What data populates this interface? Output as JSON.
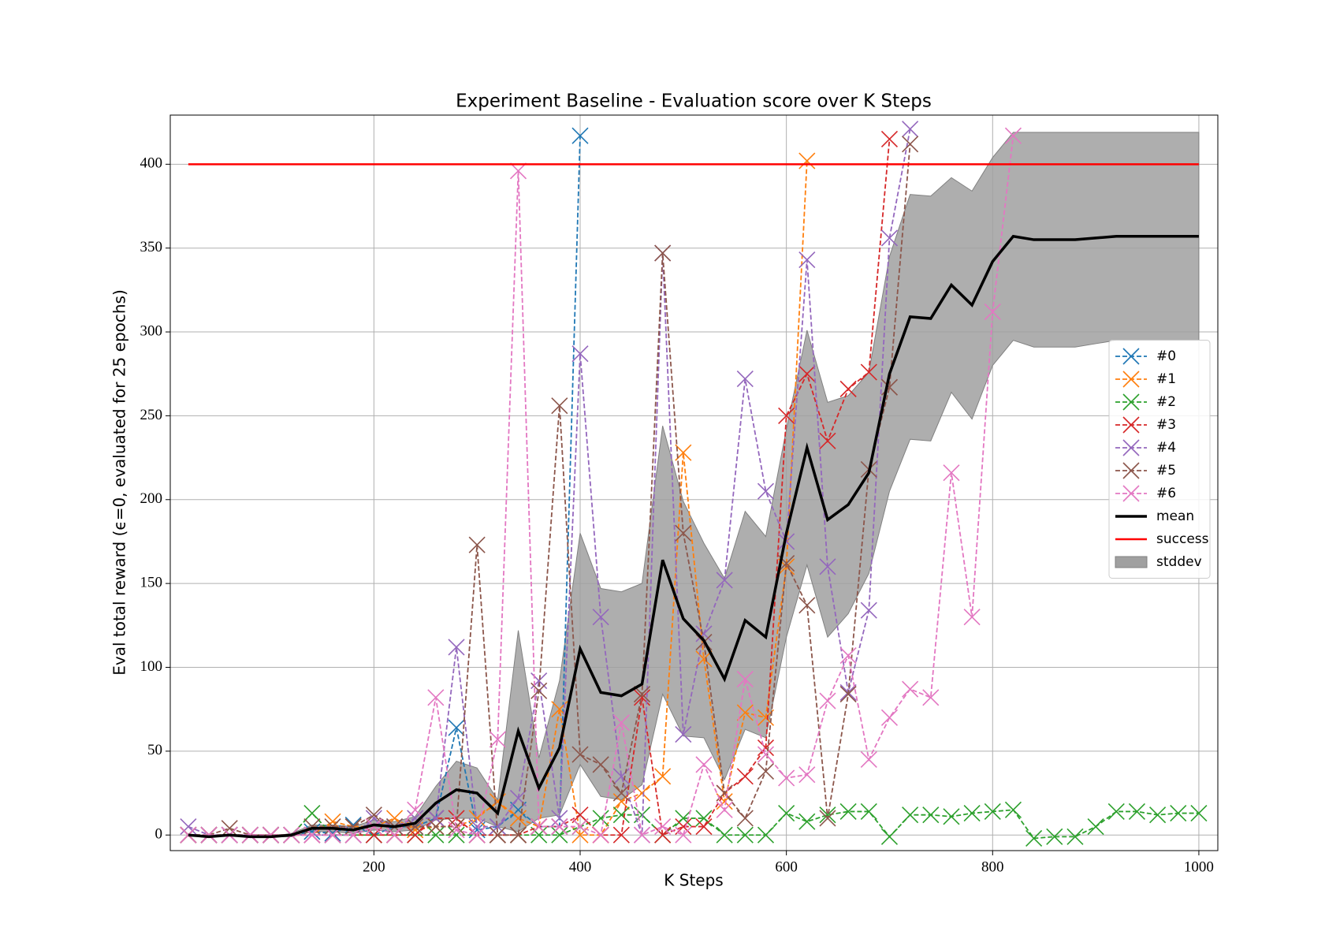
{
  "chart_data": {
    "type": "line",
    "title": "Experiment Baseline - Evaluation score over K Steps",
    "xlabel": "K Steps",
    "ylabel": "Eval total reward (ϵ=0, evaluated for 25 epochs)",
    "x": [
      20,
      40,
      60,
      80,
      100,
      120,
      140,
      160,
      180,
      200,
      220,
      240,
      260,
      280,
      300,
      320,
      340,
      360,
      380,
      400,
      420,
      440,
      460,
      480,
      500,
      520,
      540,
      560,
      580,
      600,
      620,
      640,
      660,
      680,
      700,
      720,
      740,
      760,
      780,
      800,
      820,
      840,
      860,
      880,
      900,
      920,
      940,
      960,
      980,
      1000
    ],
    "xlim": [
      2.5,
      1018.4
    ],
    "ylim": [
      -9.3,
      429.3
    ],
    "xticks": [
      200,
      400,
      600,
      800,
      1000
    ],
    "yticks": [
      0,
      50,
      100,
      150,
      200,
      250,
      300,
      350,
      400
    ],
    "grid": true,
    "legend": "center right",
    "series": [
      {
        "name": "#0",
        "color": "#1f77b4",
        "values": [
          0,
          0,
          0,
          0,
          0,
          0,
          2,
          1,
          6,
          0,
          5,
          5,
          10,
          64,
          3,
          5,
          15,
          5,
          5,
          417,
          null,
          null,
          null,
          null,
          null,
          null,
          null,
          null,
          null,
          null,
          null,
          null,
          null,
          null,
          null,
          null,
          null,
          null,
          null,
          null,
          null,
          null,
          null,
          null,
          null,
          null,
          null,
          null,
          null,
          null
        ]
      },
      {
        "name": "#1",
        "color": "#ff7f0e",
        "values": [
          0,
          0,
          0,
          0,
          0,
          0,
          0,
          8,
          5,
          5,
          10,
          3,
          5,
          5,
          10,
          20,
          10,
          5,
          75,
          0,
          0,
          20,
          25,
          35,
          228,
          105,
          20,
          73,
          70,
          160,
          402,
          null,
          null,
          null,
          null,
          null,
          null,
          null,
          null,
          null,
          null,
          null,
          null,
          null,
          null,
          null,
          null,
          null,
          null,
          null
        ]
      },
      {
        "name": "#2",
        "color": "#2ca02c",
        "values": [
          0,
          0,
          0,
          0,
          0,
          0,
          13,
          0,
          0,
          0,
          0,
          0,
          0,
          0,
          0,
          0,
          0,
          0,
          0,
          5,
          10,
          12,
          12,
          0,
          10,
          10,
          0,
          0,
          0,
          13,
          8,
          12,
          14,
          14,
          -1,
          12,
          12,
          11,
          13,
          14,
          15,
          -2,
          -1,
          -1,
          5,
          14,
          14,
          12,
          13,
          13
        ]
      },
      {
        "name": "#3",
        "color": "#d62728",
        "values": [
          0,
          0,
          0,
          0,
          0,
          0,
          0,
          0,
          0,
          0,
          0,
          0,
          10,
          10,
          0,
          0,
          0,
          5,
          5,
          12,
          0,
          0,
          82,
          0,
          5,
          5,
          25,
          35,
          52,
          250,
          275,
          235,
          266,
          276,
          415,
          null,
          null,
          null,
          null,
          null,
          null,
          null,
          null,
          null,
          null,
          null,
          null,
          null,
          null,
          null
        ]
      },
      {
        "name": "#4",
        "color": "#9467bd",
        "values": [
          5,
          0,
          0,
          0,
          0,
          0,
          0,
          0,
          0,
          10,
          5,
          10,
          10,
          112,
          5,
          5,
          22,
          92,
          10,
          287,
          130,
          35,
          0,
          347,
          60,
          120,
          152,
          272,
          205,
          175,
          343,
          160,
          85,
          134,
          356,
          421,
          null,
          null,
          null,
          null,
          null,
          null,
          null,
          null,
          null,
          null,
          null,
          null,
          null,
          null
        ]
      },
      {
        "name": "#5",
        "color": "#8c564b",
        "values": [
          0,
          0,
          4,
          0,
          0,
          0,
          5,
          5,
          5,
          12,
          5,
          5,
          5,
          5,
          173,
          0,
          0,
          86,
          256,
          48,
          42,
          25,
          84,
          347,
          180,
          115,
          25,
          10,
          38,
          162,
          137,
          10,
          84,
          218,
          267,
          412,
          null,
          null,
          null,
          null,
          null,
          null,
          null,
          null,
          null,
          null,
          null,
          null,
          null,
          null
        ]
      },
      {
        "name": "#6",
        "color": "#e377c2",
        "values": [
          0,
          0,
          0,
          0,
          0,
          0,
          0,
          0,
          0,
          5,
          0,
          15,
          82,
          3,
          0,
          57,
          396,
          5,
          5,
          5,
          0,
          67,
          0,
          5,
          0,
          42,
          15,
          93,
          48,
          34,
          36,
          80,
          107,
          45,
          70,
          87,
          82,
          216,
          130,
          312,
          417,
          null,
          null,
          null,
          null,
          null,
          null,
          null,
          null,
          null
        ]
      }
    ],
    "mean": {
      "name": "mean",
      "color": "#000000",
      "values": [
        0,
        -1,
        0,
        -1,
        -1,
        0,
        4,
        4,
        3,
        6,
        5,
        7,
        19,
        27,
        25,
        13,
        62,
        28,
        52,
        111,
        85,
        83,
        90,
        164,
        129,
        116,
        93,
        128,
        118,
        180,
        231,
        188,
        197,
        216,
        275,
        309,
        308,
        328,
        316,
        342,
        357,
        355,
        355,
        355,
        356,
        357,
        357,
        357,
        357,
        357
      ]
    },
    "success": {
      "name": "success",
      "color": "#ff0000",
      "value": 400
    },
    "stddev": {
      "name": "stddev",
      "color": "#a0a0a0",
      "values": [
        0,
        0,
        0,
        0,
        0,
        1,
        2,
        2,
        2,
        3,
        3,
        4,
        10,
        17,
        15,
        8,
        60,
        18,
        40,
        69,
        62,
        62,
        60,
        80,
        70,
        58,
        60,
        65,
        60,
        62,
        70,
        70,
        65,
        60,
        70,
        73,
        73,
        64,
        68,
        62,
        62,
        64,
        64,
        64,
        63,
        62,
        62,
        62,
        62,
        62
      ]
    }
  }
}
